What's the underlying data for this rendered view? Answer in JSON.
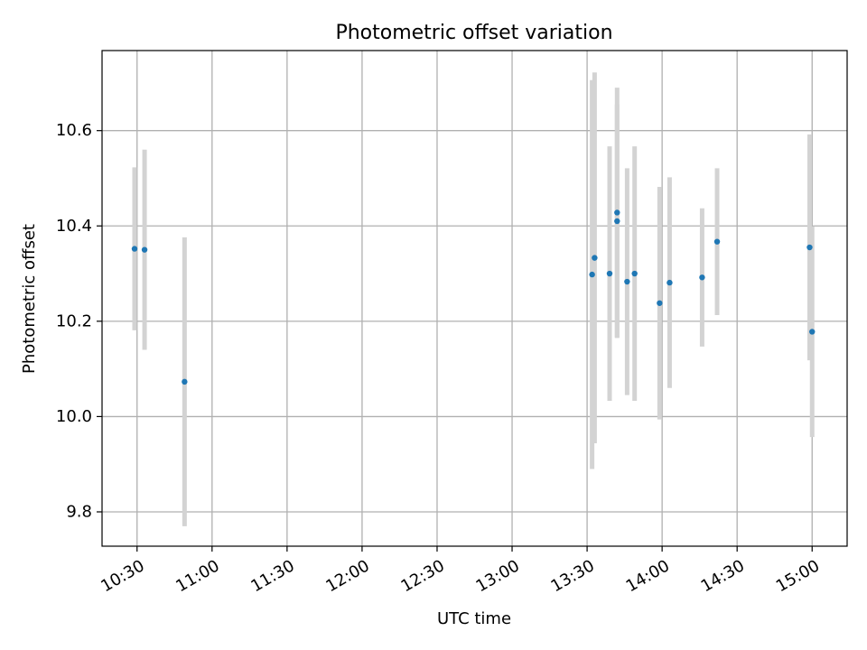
{
  "chart_data": {
    "type": "scatter",
    "title": "Photometric offset variation",
    "xlabel": "UTC time",
    "ylabel": "Photometric offset",
    "x_unit": "UTC time (HH:MM)",
    "xlim": [
      "10:16",
      "15:14"
    ],
    "ylim": [
      9.728,
      10.768
    ],
    "x_ticks": [
      "10:30",
      "11:00",
      "11:30",
      "12:00",
      "12:30",
      "13:00",
      "13:30",
      "14:00",
      "14:30",
      "15:00"
    ],
    "y_ticks": [
      9.8,
      10.0,
      10.2,
      10.4,
      10.6
    ],
    "grid": true,
    "legend": "none",
    "colors": {
      "point": "#1f77b4",
      "errorbar": "#d3d3d3",
      "grid": "#b0b0b0"
    },
    "series": [
      {
        "points": [
          {
            "x": "10:29",
            "y": 10.352,
            "err": 0.171
          },
          {
            "x": "10:33",
            "y": 10.35,
            "err": 0.21
          },
          {
            "x": "10:49",
            "y": 10.073,
            "err": 0.303
          },
          {
            "x": "13:32",
            "y": 10.298,
            "err": 0.408
          },
          {
            "x": "13:33",
            "y": 10.333,
            "err": 0.389
          },
          {
            "x": "13:39",
            "y": 10.3,
            "err": 0.267
          },
          {
            "x": "13:42",
            "y": 10.428,
            "err": 0.262
          },
          {
            "x": "13:42",
            "y": 10.41,
            "err": 0.245
          },
          {
            "x": "13:46",
            "y": 10.283,
            "err": 0.238
          },
          {
            "x": "13:49",
            "y": 10.3,
            "err": 0.267
          },
          {
            "x": "13:59",
            "y": 10.238,
            "err": 0.244
          },
          {
            "x": "14:03",
            "y": 10.281,
            "err": 0.221
          },
          {
            "x": "14:16",
            "y": 10.292,
            "err": 0.145
          },
          {
            "x": "14:22",
            "y": 10.367,
            "err": 0.154
          },
          {
            "x": "14:59",
            "y": 10.355,
            "err": 0.237
          },
          {
            "x": "15:00",
            "y": 10.178,
            "err": 0.221
          }
        ]
      }
    ]
  }
}
